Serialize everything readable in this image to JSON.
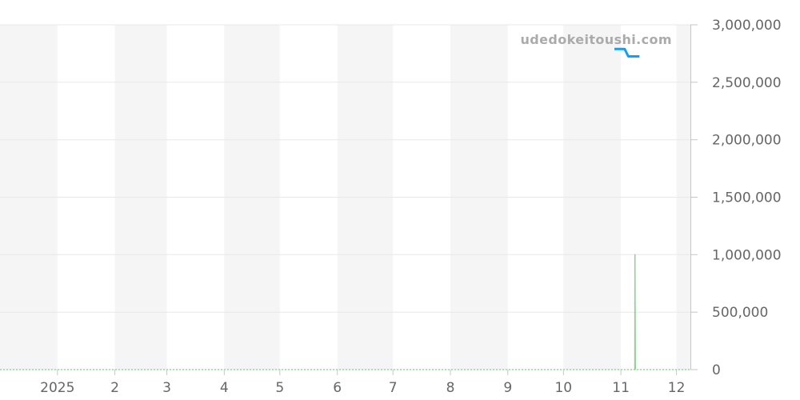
{
  "watermark_text": "udedokeitoushi.com",
  "chart_data": {
    "type": "line",
    "title": "",
    "watermark": "udedokeitoushi.com",
    "x_axis": {
      "kind": "time",
      "tick_labels": [
        "2025",
        "2",
        "3",
        "4",
        "5",
        "6",
        "7",
        "8",
        "9",
        "10",
        "11",
        "12"
      ],
      "tick_positions_days": [
        31,
        62,
        90,
        121,
        151,
        182,
        212,
        243,
        274,
        304,
        335,
        365
      ],
      "domain_days": [
        0,
        372.5
      ],
      "grid": false,
      "alternating_bands": true
    },
    "y_axis": {
      "position": "right",
      "tick_labels": [
        "0",
        "500,000",
        "1,000,000",
        "1,500,000",
        "2,000,000",
        "2,500,000",
        "3,000,000"
      ],
      "tick_values": [
        0,
        500000,
        1000000,
        1500000,
        2000000,
        2500000,
        3000000
      ],
      "range": [
        0,
        3000000
      ],
      "grid": true
    },
    "series": [
      {
        "name": "blue-price-step-line",
        "color": "#189cf0",
        "width": 3,
        "dash": "",
        "points_day_value": [
          [
            331.5,
            2790000
          ],
          [
            337,
            2790000
          ],
          [
            339,
            2725000
          ],
          [
            345,
            2725000
          ]
        ]
      },
      {
        "name": "green-zero-baseline",
        "color": "#9bd79e",
        "width": 1.5,
        "dash": "2 2",
        "points_day_value": [
          [
            0,
            0
          ],
          [
            372.5,
            0
          ]
        ]
      },
      {
        "name": "green-spike",
        "color": "#8ed391",
        "width": 1.5,
        "dash": "",
        "points_day_value": [
          [
            342.5,
            0
          ],
          [
            342.6,
            1000000
          ],
          [
            342.8,
            0
          ]
        ]
      }
    ],
    "legend": "none",
    "colors": {
      "band": "#f5f5f5",
      "gridline": "#e8e8e8",
      "axis": "#c6c6c6",
      "tick_label": "#666666",
      "watermark": "#ababab",
      "background": "#ffffff"
    }
  }
}
